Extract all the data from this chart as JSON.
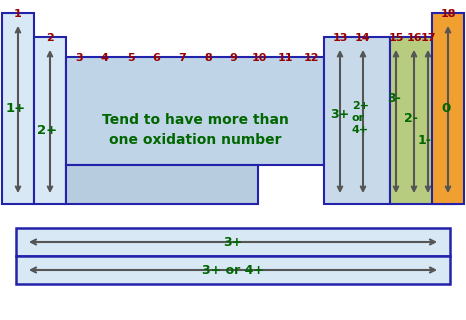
{
  "bg_color": "#ffffff",
  "border_color": "#2222aa",
  "col1_color": "#d8e8f4",
  "col2_color": "#d8e8f4",
  "mid_color_top": "#c0d4e8",
  "mid_color_bot": "#b8cce0",
  "right_light_color": "#c8daea",
  "green_color": "#b8cc80",
  "orange_color": "#f0a030",
  "label_color": "#990000",
  "text_green": "#006600",
  "arrow_color": "#555555",
  "main_text_line1": "Tend to have more than",
  "main_text_line2": "one oxidation number",
  "bottom_label1": "3+",
  "bottom_label2": "3+ or 4+"
}
